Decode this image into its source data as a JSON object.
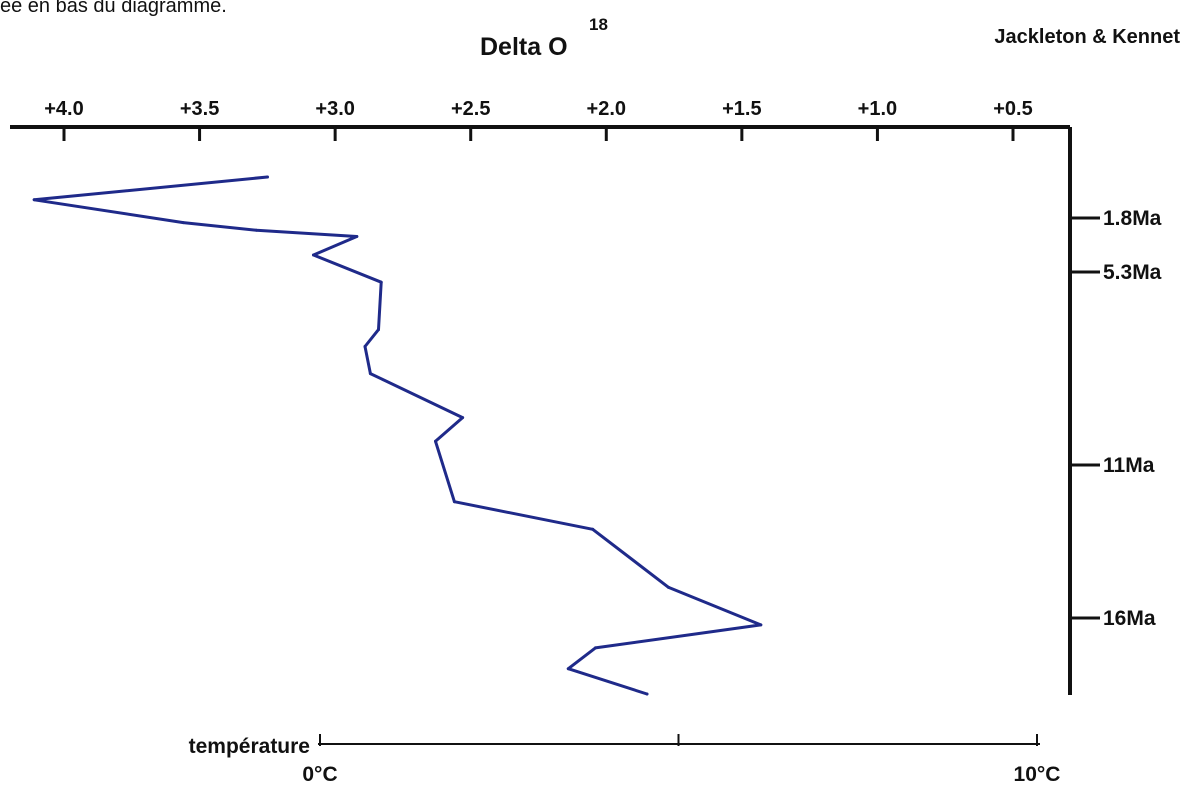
{
  "caption_fragment": "ée en bas du diagramme.",
  "chart_data": {
    "type": "line",
    "title": "Delta O",
    "title_superscript": "18",
    "attribution": "Jackleton & Kennet",
    "top_axis": {
      "ticks": [
        "+4.0",
        "+3.5",
        "+3.0",
        "+2.5",
        "+2.0",
        "+1.5",
        "+1.0",
        "+0.5"
      ],
      "tick_values": [
        4.0,
        3.5,
        3.0,
        2.5,
        2.0,
        1.5,
        1.0,
        0.5
      ],
      "direction": "decreasing-left-to-right"
    },
    "right_axis": {
      "label_ticks": [
        {
          "label": "1.8Ma",
          "value": 1.8
        },
        {
          "label": "5.3Ma",
          "value": 5.3
        },
        {
          "label": "11Ma",
          "value": 11
        },
        {
          "label": "16Ma",
          "value": 16
        }
      ],
      "orientation": "age increases downward"
    },
    "bottom_axis": {
      "label": "température",
      "ticks": [
        "0°C",
        "",
        "10°C"
      ],
      "tick_values": [
        0,
        5,
        10
      ]
    },
    "series": [
      {
        "color": "#1f2a8a",
        "points": [
          {
            "delta": 3.25,
            "age": 0.0
          },
          {
            "delta": 4.11,
            "age": 1.0
          },
          {
            "delta": 3.56,
            "age": 2.1
          },
          {
            "delta": 3.29,
            "age": 2.6
          },
          {
            "delta": 2.92,
            "age": 3.0
          },
          {
            "delta": 3.08,
            "age": 4.2
          },
          {
            "delta": 2.83,
            "age": 5.6
          },
          {
            "delta": 2.84,
            "age": 7.0
          },
          {
            "delta": 2.89,
            "age": 7.5
          },
          {
            "delta": 2.87,
            "age": 8.3
          },
          {
            "delta": 2.53,
            "age": 9.6
          },
          {
            "delta": 2.63,
            "age": 10.3
          },
          {
            "delta": 2.56,
            "age": 12.2
          },
          {
            "delta": 2.05,
            "age": 13.1
          },
          {
            "delta": 1.77,
            "age": 15.0
          },
          {
            "delta": 1.43,
            "age": 16.3
          },
          {
            "delta": 2.04,
            "age": 17.3
          },
          {
            "delta": 2.14,
            "age": 18.2
          },
          {
            "delta": 1.85,
            "age": 19.3
          }
        ]
      }
    ]
  }
}
